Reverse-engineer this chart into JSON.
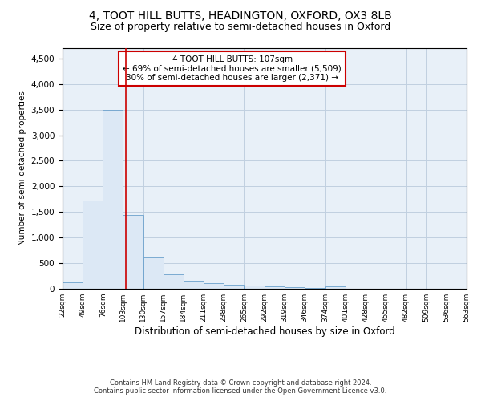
{
  "title": "4, TOOT HILL BUTTS, HEADINGTON, OXFORD, OX3 8LB",
  "subtitle": "Size of property relative to semi-detached houses in Oxford",
  "xlabel": "Distribution of semi-detached houses by size in Oxford",
  "ylabel": "Number of semi-detached properties",
  "footnote1": "Contains HM Land Registry data © Crown copyright and database right 2024.",
  "footnote2": "Contains public sector information licensed under the Open Government Licence v3.0.",
  "annotation_line1": "4 TOOT HILL BUTTS: 107sqm",
  "annotation_line2": "← 69% of semi-detached houses are smaller (5,509)",
  "annotation_line3": "30% of semi-detached houses are larger (2,371) →",
  "bar_values": [
    120,
    1720,
    3500,
    1440,
    610,
    275,
    155,
    105,
    85,
    55,
    45,
    30,
    10,
    40,
    5,
    3,
    2,
    1,
    1,
    0
  ],
  "bin_edges": [
    22,
    49,
    76,
    103,
    130,
    157,
    184,
    211,
    238,
    265,
    292,
    319,
    346,
    374,
    401,
    428,
    455,
    482,
    509,
    536,
    563
  ],
  "xlabels": [
    "22sqm",
    "49sqm",
    "76sqm",
    "103sqm",
    "130sqm",
    "157sqm",
    "184sqm",
    "211sqm",
    "238sqm",
    "265sqm",
    "292sqm",
    "319sqm",
    "346sqm",
    "374sqm",
    "401sqm",
    "428sqm",
    "455sqm",
    "482sqm",
    "509sqm",
    "536sqm",
    "563sqm"
  ],
  "bar_color": "#dce8f5",
  "bar_edge_color": "#6aa0cc",
  "vline_x": 107,
  "vline_color": "#cc0000",
  "ylim": [
    0,
    4700
  ],
  "yticks": [
    0,
    500,
    1000,
    1500,
    2000,
    2500,
    3000,
    3500,
    4000,
    4500
  ],
  "grid_color": "#c0cfe0",
  "bg_color": "#e8f0f8",
  "annotation_box_color": "#ffffff",
  "annotation_box_edge": "#cc0000",
  "title_fontsize": 10,
  "subtitle_fontsize": 9
}
